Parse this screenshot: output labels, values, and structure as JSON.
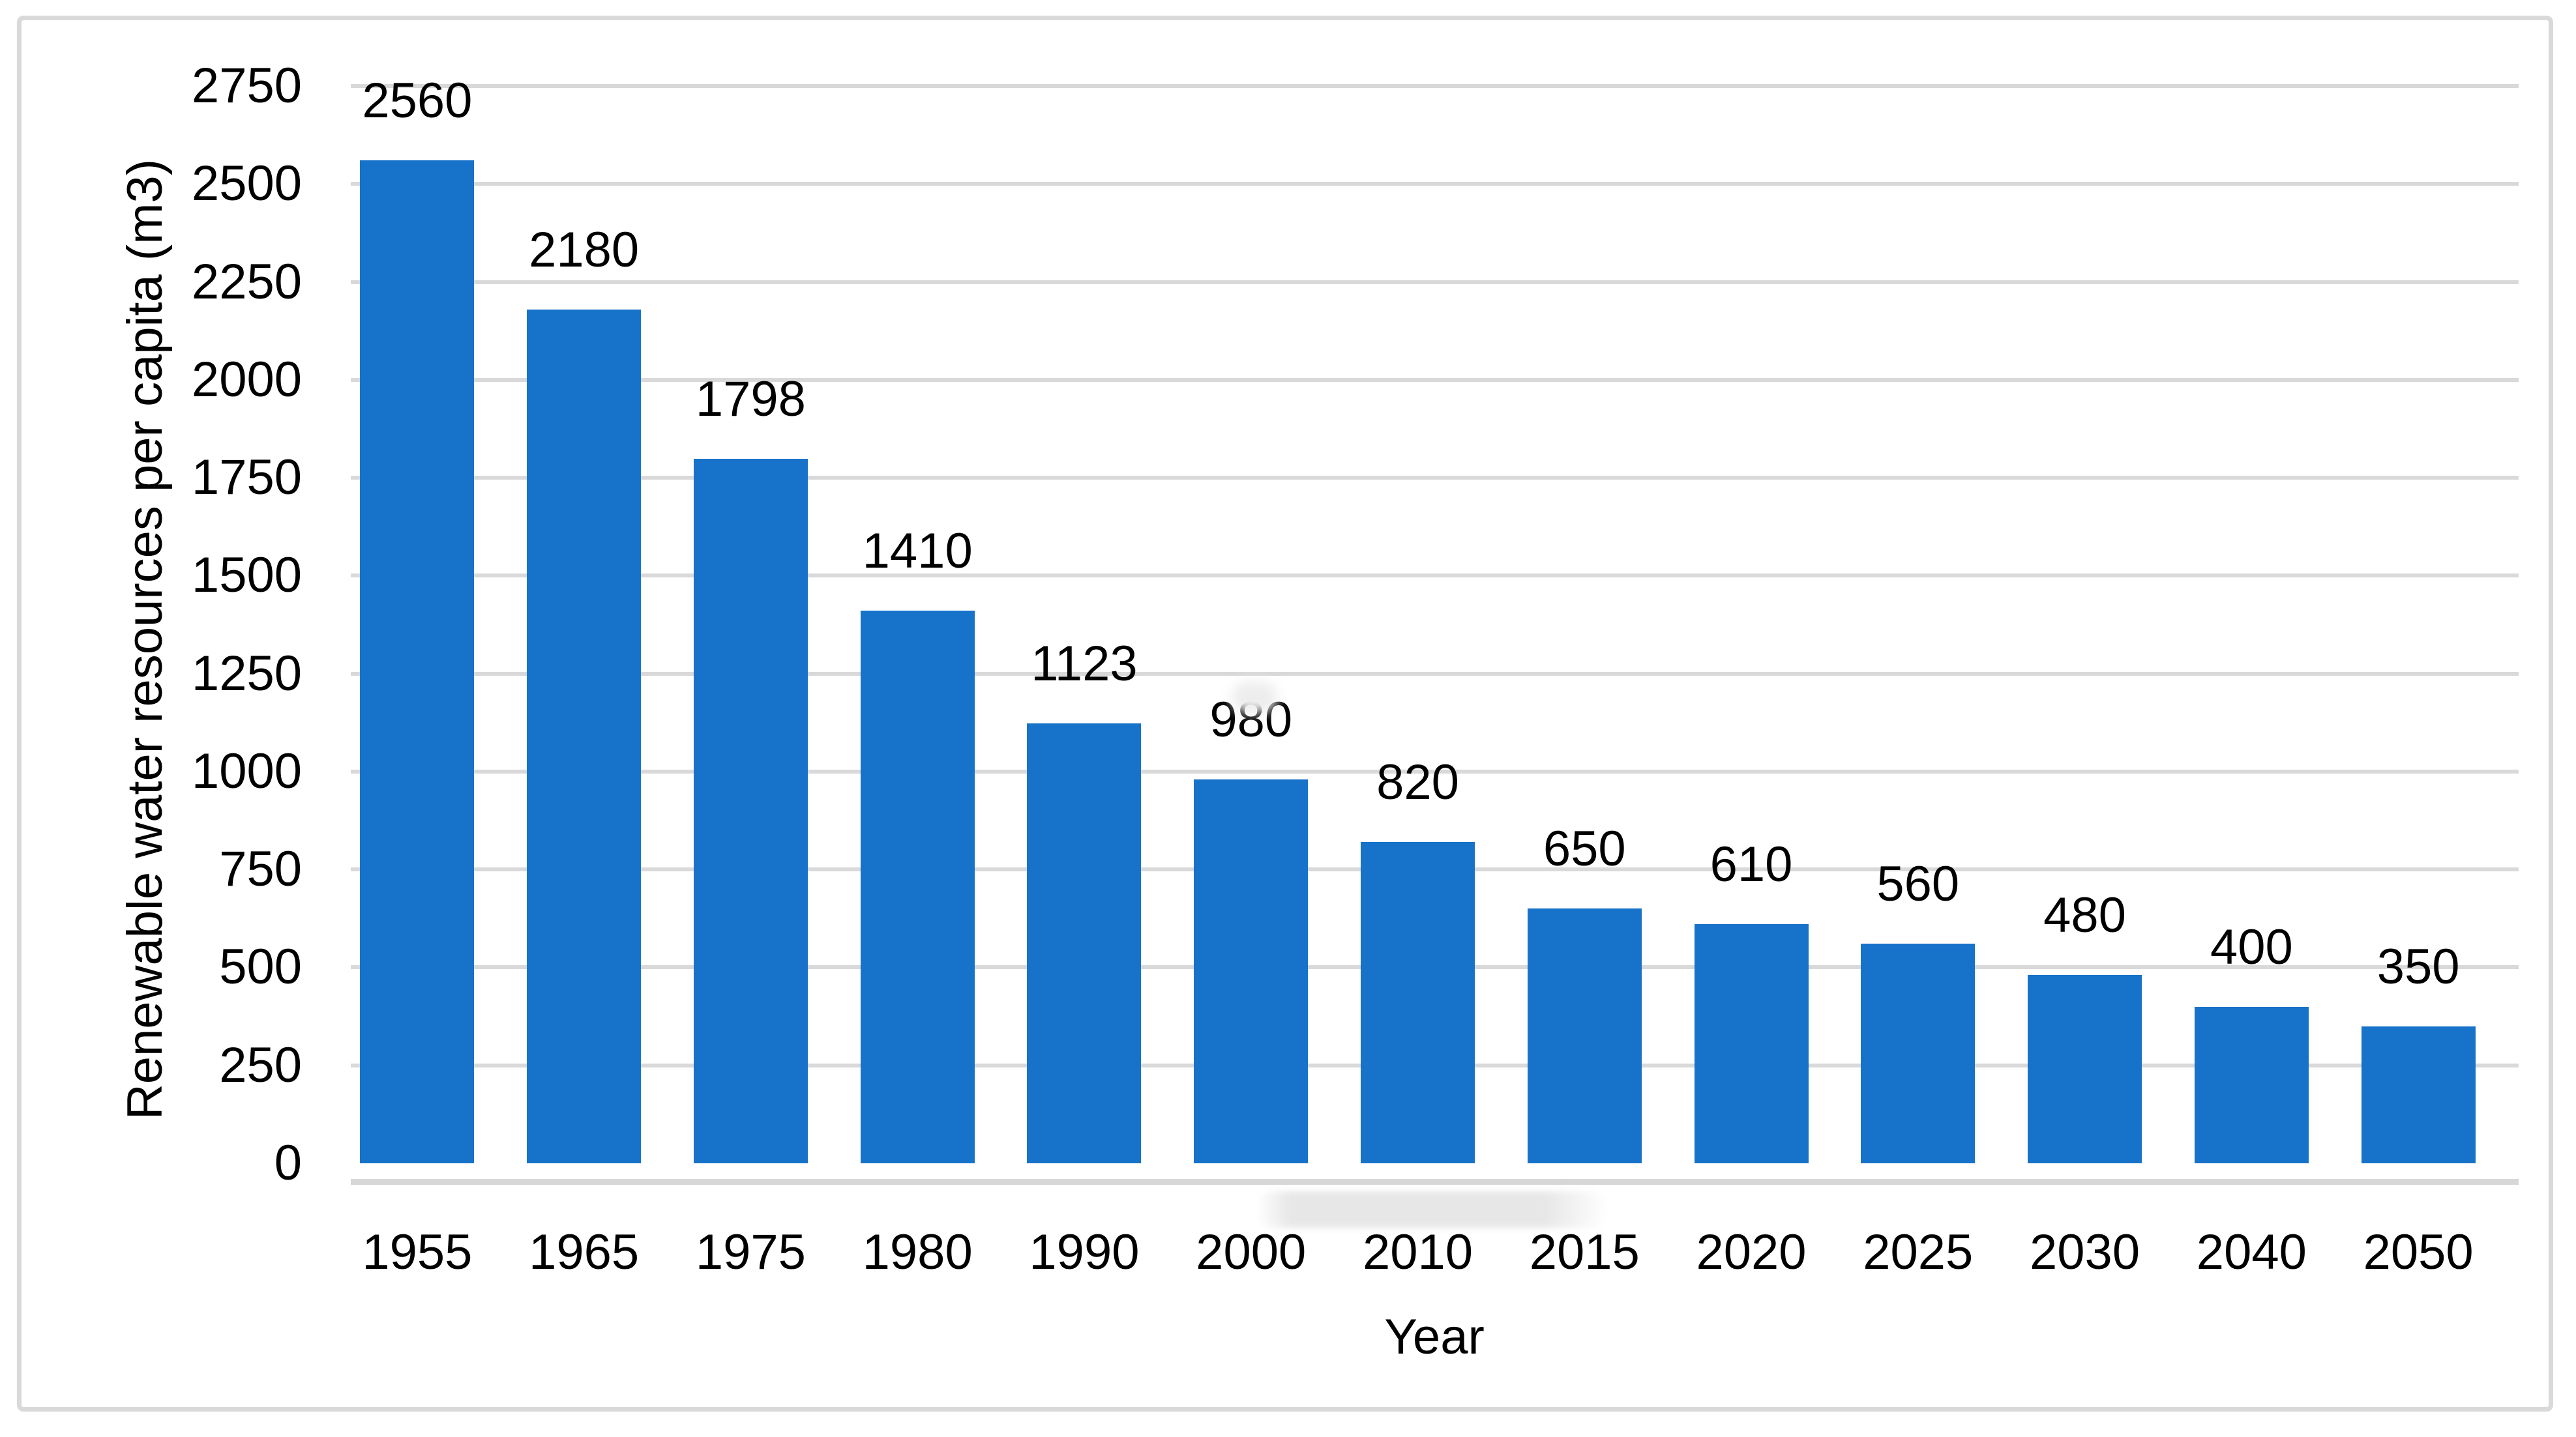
{
  "chart_data": {
    "type": "bar",
    "title": "",
    "categories": [
      "1955",
      "1965",
      "1975",
      "1980",
      "1990",
      "2000",
      "2010",
      "2015",
      "2020",
      "2025",
      "2030",
      "2040",
      "2050"
    ],
    "values": [
      2560,
      2180,
      1798,
      1410,
      1123,
      980,
      820,
      650,
      610,
      560,
      480,
      400,
      350
    ],
    "data_labels": [
      "2560",
      "2180",
      "1798",
      "1410",
      "1123",
      "980",
      "820",
      "650",
      "610",
      "560",
      "480",
      "400",
      "350"
    ],
    "xlabel": "Year",
    "ylabel": "Renewable water resources per capita (m3)",
    "ylim": [
      0,
      2750
    ],
    "yticks": [
      0,
      250,
      500,
      750,
      1000,
      1250,
      1500,
      1750,
      2000,
      2250,
      2500,
      2750
    ],
    "grid": true,
    "legend": "none",
    "colors": {
      "bar": "#1772C9",
      "gridline": "#D9D9D9",
      "axis_line": "#D7D7D7",
      "frame_border": "#D9D9D9",
      "text": "#000000",
      "background": "#FFFFFF"
    }
  }
}
